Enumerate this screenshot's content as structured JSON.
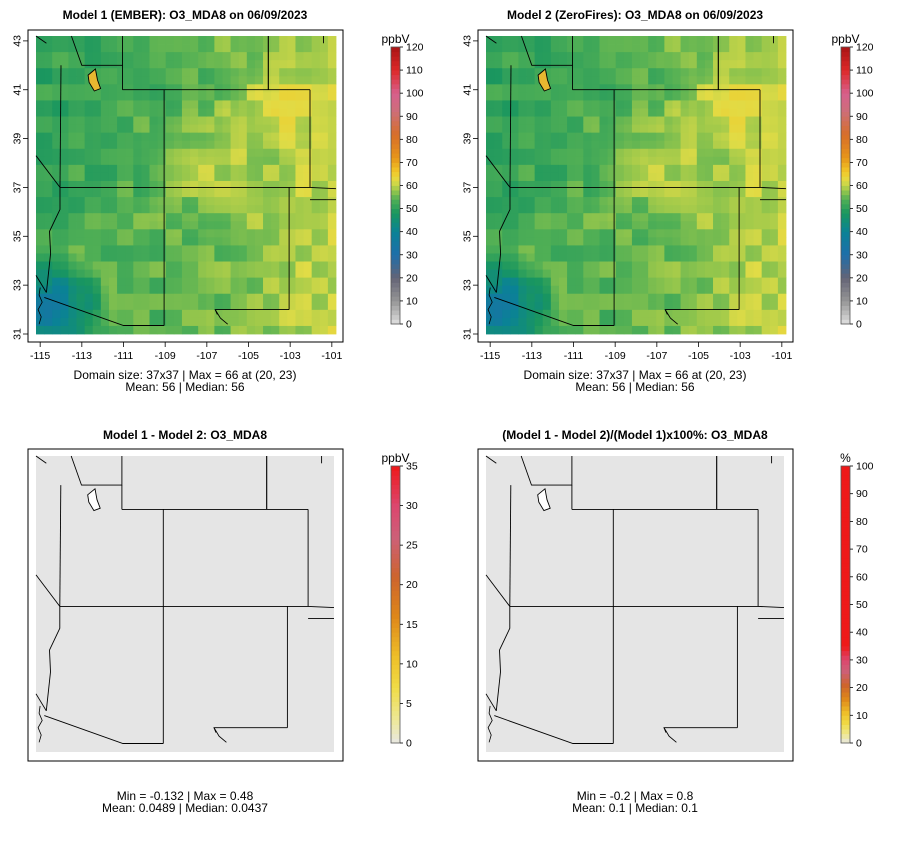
{
  "chart_data": [
    {
      "type": "heatmap",
      "title": "Model 1 (EMBER): O3_MDA8 on 06/09/2023",
      "colorbar_unit": "ppbV",
      "colorbar_range": [
        0,
        120
      ],
      "colorbar_ticks": [
        "0",
        "10",
        "20",
        "30",
        "40",
        "50",
        "60",
        "70",
        "80",
        "90",
        "100",
        "110",
        "120"
      ],
      "x_ticks": [
        "-115",
        "-113",
        "-111",
        "-109",
        "-107",
        "-105",
        "-103",
        "-101"
      ],
      "y_ticks": [
        "31",
        "33",
        "35",
        "37",
        "39",
        "41",
        "43"
      ],
      "xlim": [
        -115.2,
        -100.8
      ],
      "ylim": [
        31,
        43.2
      ],
      "grid_size": "37x37",
      "max_value": 66,
      "max_location": [
        20,
        23
      ],
      "mean": 56,
      "median": 56,
      "footer_line1": "Domain size: 37x37 | Max = 66 at (20, 23)",
      "footer_line2": "Mean: 56 |  Median: 56"
    },
    {
      "type": "heatmap",
      "title": "Model 2 (ZeroFires): O3_MDA8 on 06/09/2023",
      "colorbar_unit": "ppbV",
      "colorbar_range": [
        0,
        120
      ],
      "colorbar_ticks": [
        "0",
        "10",
        "20",
        "30",
        "40",
        "50",
        "60",
        "70",
        "80",
        "90",
        "100",
        "110",
        "120"
      ],
      "x_ticks": [
        "-115",
        "-113",
        "-111",
        "-109",
        "-107",
        "-105",
        "-103",
        "-101"
      ],
      "y_ticks": [
        "31",
        "33",
        "35",
        "37",
        "39",
        "41",
        "43"
      ],
      "xlim": [
        -115.2,
        -100.8
      ],
      "ylim": [
        31,
        43.2
      ],
      "grid_size": "37x37",
      "max_value": 66,
      "max_location": [
        20,
        23
      ],
      "mean": 56,
      "median": 56,
      "footer_line1": "Domain size: 37x37 | Max = 66 at (20, 23)",
      "footer_line2": "Mean: 56 |  Median: 56"
    },
    {
      "type": "heatmap",
      "title": "Model 1 - Model 2: O3_MDA8",
      "colorbar_unit": "ppbV",
      "colorbar_range": [
        0,
        35
      ],
      "colorbar_ticks": [
        "0",
        "5",
        "10",
        "15",
        "20",
        "25",
        "30",
        "35"
      ],
      "min": -0.132,
      "max": 0.48,
      "mean": 0.0489,
      "median": 0.0437,
      "footer_line1": "Min = -0.132 | Max = 0.48",
      "footer_line2": "Mean: 0.0489 |  Median: 0.0437"
    },
    {
      "type": "heatmap",
      "title": "(Model 1 - Model 2)/(Model 1)x100%: O3_MDA8",
      "colorbar_unit": "%",
      "colorbar_range": [
        0,
        100
      ],
      "colorbar_ticks": [
        "0",
        "10",
        "20",
        "30",
        "40",
        "50",
        "60",
        "70",
        "80",
        "90",
        "100"
      ],
      "min": -0.2,
      "max": 0.8,
      "mean": 0.1,
      "median": 0.1,
      "footer_line1": "Min = -0.2 | Max = 0.8",
      "footer_line2": "Mean: 0.1 |  Median: 0.1"
    }
  ],
  "colors": {
    "map_fill_diff": "#e5e5e5",
    "border": "#000000"
  }
}
